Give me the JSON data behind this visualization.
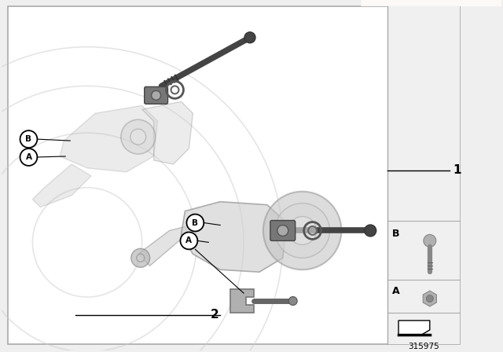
{
  "background_color": "#efefef",
  "main_bg": "#ffffff",
  "border_color": "#aaaaaa",
  "peach_color": "#f0d4b8",
  "gray_arc_color": "#d0d0d0",
  "part_number": "315975",
  "label_1": "1",
  "label_2": "2",
  "label_A": "A",
  "label_B": "B",
  "bolt_dark": "#555555",
  "bolt_mid": "#888888",
  "bolt_light": "#b0b0b0",
  "component_gray": "#c0c0c0",
  "component_dark": "#999999"
}
